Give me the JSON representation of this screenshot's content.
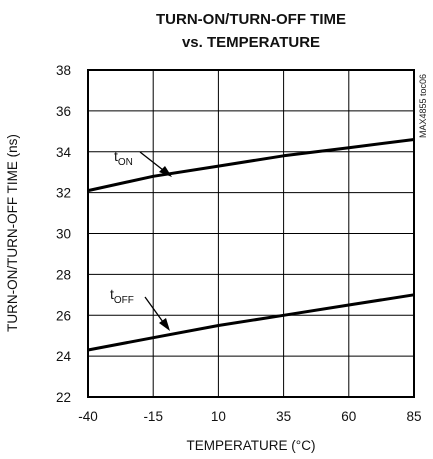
{
  "chart_data": {
    "type": "line",
    "title": [
      "TURN-ON/TURN-OFF TIME",
      "vs. TEMPERATURE"
    ],
    "xlabel": "TEMPERATURE (°C)",
    "ylabel": "TURN-ON/TURN-OFF TIME (ns)",
    "side_label": "MAX4855 toc06",
    "xlim": [
      -40,
      85
    ],
    "ylim": [
      22,
      38
    ],
    "xticks": [
      -40,
      -15,
      10,
      35,
      60,
      85
    ],
    "yticks": [
      22,
      24,
      26,
      28,
      30,
      32,
      34,
      36,
      38
    ],
    "grid": true,
    "series": [
      {
        "name": "tON",
        "label_main": "t",
        "label_sub": "ON",
        "color": "#000000",
        "x": [
          -40,
          -15,
          10,
          35,
          60,
          85
        ],
        "y": [
          32.1,
          32.8,
          33.3,
          33.8,
          34.2,
          34.6
        ]
      },
      {
        "name": "tOFF",
        "label_main": "t",
        "label_sub": "OFF",
        "color": "#000000",
        "x": [
          -40,
          -15,
          10,
          35,
          60,
          85
        ],
        "y": [
          24.3,
          24.9,
          25.5,
          26.0,
          26.5,
          27.0
        ]
      }
    ]
  }
}
